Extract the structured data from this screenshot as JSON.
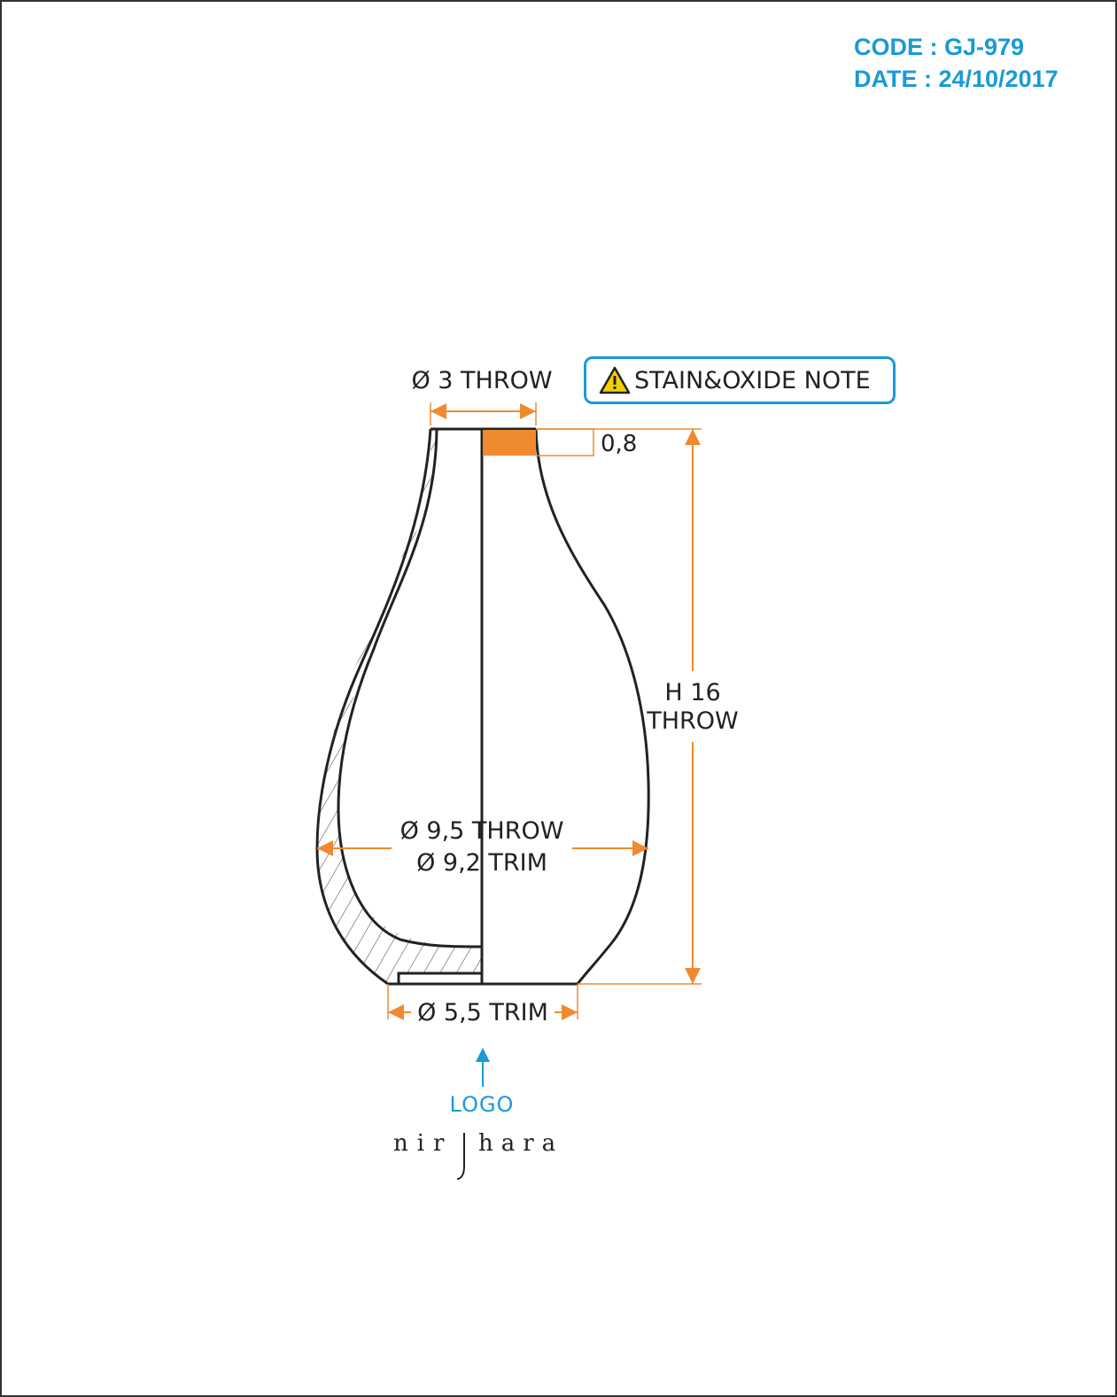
{
  "header": {
    "code_line": "CODE : GJ-979",
    "date_line": "DATE : 24/10/2017"
  },
  "drawing": {
    "top_diameter": "Ø 3 THROW",
    "rim_thickness": "0,8",
    "height_line1": "H 16",
    "height_line2": "THROW",
    "body_diameter_throw": "Ø 9,5 THROW",
    "body_diameter_trim": "Ø 9,2 TRIM",
    "base_diameter": "Ø 5,5 TRIM",
    "note_badge": "STAIN&OXIDE NOTE"
  },
  "logo": {
    "pointer_label": "LOGO",
    "brand": "nirjhara"
  },
  "colors": {
    "accent_blue": "#1a9ad6",
    "dimension_orange": "#f08a30",
    "outline": "#222222",
    "warning_yellow": "#f5d000"
  },
  "icons": {
    "note_icon": "warning-triangle-icon"
  }
}
